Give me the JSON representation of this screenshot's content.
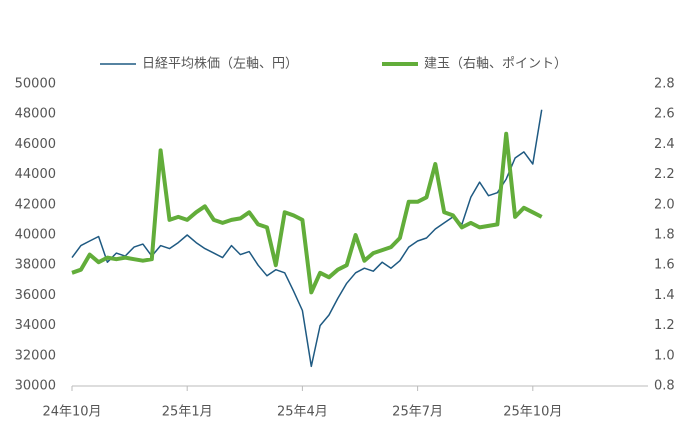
{
  "chart_data": {
    "type": "line",
    "categories": [
      "24年10月",
      null,
      null,
      null,
      null,
      null,
      null,
      null,
      null,
      null,
      null,
      null,
      null,
      "25年1月",
      null,
      null,
      null,
      null,
      null,
      null,
      null,
      null,
      null,
      null,
      null,
      null,
      "25年4月",
      null,
      null,
      null,
      null,
      null,
      null,
      null,
      null,
      null,
      null,
      null,
      null,
      "25年7月",
      null,
      null,
      null,
      null,
      null,
      null,
      null,
      null,
      null,
      null,
      null,
      null,
      "25年10月",
      null,
      null,
      null,
      null,
      null,
      null,
      null,
      null,
      null,
      null,
      null,
      null,
      null
    ],
    "series": [
      {
        "name": "日経平均株価（左軸、円）",
        "color": "#1f5a82",
        "values": [
          38500,
          39300,
          39600,
          39900,
          38200,
          38800,
          38600,
          39200,
          39400,
          38600,
          39300,
          39100,
          39500,
          40000,
          39500,
          39100,
          38800,
          38500,
          39300,
          38700,
          38900,
          38000,
          37300,
          37700,
          37500,
          36300,
          35000,
          31300,
          34000,
          34700,
          35800,
          36800,
          37500,
          37800,
          37600,
          38200,
          37800,
          38300,
          39200,
          39600,
          39800,
          40400,
          40800,
          41200,
          40700,
          42500,
          43500,
          42600,
          42800,
          43700,
          45100,
          45500,
          44700,
          48300,
          null,
          null,
          null,
          null,
          null,
          null,
          null,
          null,
          null,
          null,
          null,
          null
        ]
      },
      {
        "name": "建玉（右軸、ポイント）",
        "color": "#62ad3a",
        "axis": "y2",
        "values": [
          1.55,
          1.57,
          1.67,
          1.62,
          1.65,
          1.64,
          1.65,
          1.64,
          1.63,
          1.64,
          2.36,
          1.9,
          1.92,
          1.9,
          1.95,
          1.99,
          1.9,
          1.88,
          1.9,
          1.91,
          1.95,
          1.87,
          1.85,
          1.6,
          1.95,
          1.93,
          1.9,
          1.42,
          1.55,
          1.52,
          1.57,
          1.6,
          1.8,
          1.63,
          1.68,
          1.7,
          1.72,
          1.78,
          2.02,
          2.02,
          2.05,
          2.27,
          1.95,
          1.93,
          1.85,
          1.88,
          1.85,
          1.86,
          1.87,
          2.47,
          1.92,
          1.98,
          1.95,
          1.92,
          null,
          null,
          null,
          null,
          null,
          null,
          null,
          null,
          null,
          null,
          null,
          null
        ]
      }
    ],
    "ylim": [
      30000,
      50000
    ],
    "yticks": [
      30000,
      32000,
      34000,
      36000,
      38000,
      40000,
      42000,
      44000,
      46000,
      48000,
      50000
    ],
    "y2lim": [
      0.8,
      2.8
    ],
    "y2ticks": [
      0.8,
      {
        "value": 1.0,
        "label": "1.0"
      },
      1.2,
      1.4,
      1.6,
      1.8,
      {
        "value": 2.0,
        "label": "2.0"
      },
      2.2,
      2.4,
      2.6,
      2.8
    ],
    "grid": false,
    "legend": "top"
  }
}
